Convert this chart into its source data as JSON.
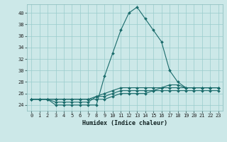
{
  "xlabel": "Humidex (Indice chaleur)",
  "bg_color": "#cce8e8",
  "grid_color": "#99cccc",
  "line_color": "#1a6b6b",
  "xlim": [
    -0.5,
    23.5
  ],
  "ylim": [
    23.0,
    41.5
  ],
  "xticks": [
    0,
    1,
    2,
    3,
    4,
    5,
    6,
    7,
    8,
    9,
    10,
    11,
    12,
    13,
    14,
    15,
    16,
    17,
    18,
    19,
    20,
    21,
    22,
    23
  ],
  "yticks": [
    24,
    26,
    28,
    30,
    32,
    34,
    36,
    38,
    40
  ],
  "series": [
    {
      "x": [
        0,
        1,
        2,
        3,
        4,
        5,
        6,
        7,
        8,
        9,
        10,
        11,
        12,
        13,
        14,
        15,
        16,
        17,
        18,
        19,
        20,
        21,
        22,
        23
      ],
      "y": [
        25.0,
        25.0,
        25.0,
        24.0,
        24.0,
        24.0,
        24.0,
        24.0,
        24.0,
        29.0,
        33.0,
        37.0,
        40.0,
        41.0,
        39.0,
        37.0,
        35.0,
        30.0,
        28.0,
        27.0,
        27.0,
        27.0,
        27.0,
        27.0
      ]
    },
    {
      "x": [
        0,
        1,
        2,
        3,
        4,
        5,
        6,
        7,
        8,
        9,
        10,
        11,
        12,
        13,
        14,
        15,
        16,
        17,
        18,
        19,
        20,
        21,
        22,
        23
      ],
      "y": [
        25.0,
        25.0,
        25.0,
        24.5,
        24.5,
        24.5,
        24.5,
        24.5,
        25.5,
        26.0,
        26.5,
        27.0,
        27.0,
        27.0,
        27.0,
        27.0,
        27.0,
        27.5,
        27.5,
        27.0,
        27.0,
        27.0,
        27.0,
        27.0
      ]
    },
    {
      "x": [
        0,
        1,
        2,
        3,
        4,
        5,
        6,
        7,
        8,
        9,
        10,
        11,
        12,
        13,
        14,
        15,
        16,
        17,
        18,
        19,
        20,
        21,
        22,
        23
      ],
      "y": [
        25.0,
        25.0,
        25.0,
        25.0,
        25.0,
        25.0,
        25.0,
        25.0,
        25.5,
        25.5,
        26.0,
        26.5,
        26.5,
        26.5,
        26.5,
        26.5,
        27.0,
        27.0,
        27.0,
        27.0,
        27.0,
        27.0,
        27.0,
        27.0
      ]
    },
    {
      "x": [
        0,
        1,
        2,
        3,
        4,
        5,
        6,
        7,
        8,
        9,
        10,
        11,
        12,
        13,
        14,
        15,
        16,
        17,
        18,
        19,
        20,
        21,
        22,
        23
      ],
      "y": [
        25.0,
        25.0,
        25.0,
        25.0,
        25.0,
        25.0,
        25.0,
        25.0,
        25.0,
        25.0,
        25.5,
        26.0,
        26.0,
        26.0,
        26.0,
        26.5,
        26.5,
        26.5,
        26.5,
        26.5,
        26.5,
        26.5,
        26.5,
        26.5
      ]
    }
  ]
}
